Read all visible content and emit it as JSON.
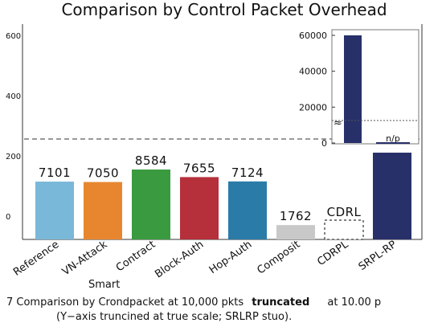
{
  "chart_data": {
    "type": "bar",
    "title": "Comparison by Control Packet Overhead",
    "categories": [
      "Reference",
      "VN-Attack",
      "Smart Contract",
      "Block-Auth",
      "Hop-Auth",
      "Composit",
      "CDRPL",
      "SRPL-RP"
    ],
    "category_labels": [
      "Reference",
      "VN-Attack",
      "Contract",
      "Block-Auth",
      "Hop-Auth",
      "Composit",
      "CDRPL",
      "SRPL-RP"
    ],
    "category_sublabel": "Smart",
    "value_labels": [
      "7101",
      "7050",
      "8584",
      "7655",
      "7124",
      "1762",
      "CDRL",
      ""
    ],
    "values": [
      7101,
      7050,
      8584,
      7655,
      7124,
      1762,
      null,
      60000
    ],
    "colors": [
      "#7ab8d9",
      "#e8862f",
      "#3a9a3f",
      "#b5303a",
      "#2b7ba8",
      "#c8c8c8",
      "#ffffff",
      "#28306a"
    ],
    "truncated": [
      false,
      false,
      false,
      false,
      false,
      false,
      false,
      true
    ],
    "yticks_main": [
      "600",
      "400",
      "200",
      "0"
    ],
    "inset": {
      "yticks": [
        "60000",
        "40000",
        "20000",
        "0"
      ],
      "ylim": [
        0,
        60000
      ],
      "bars": [
        {
          "category": "SRPL-RP",
          "value": 60000,
          "color": "#28306a",
          "label": ""
        },
        {
          "category": "CDRPL",
          "value": null,
          "color": "#28306a",
          "label": "n/p"
        }
      ],
      "break_marker": "≈"
    },
    "grid": false,
    "legend": "none"
  },
  "caption": {
    "line1_a": "7  Comparison by Crondpacket at 10,000  pkts",
    "line1_b": "truncated",
    "line1_c": "at 10.00 p",
    "line2": "(Y−axis truncined at true scale; SRLRP stuo)."
  }
}
